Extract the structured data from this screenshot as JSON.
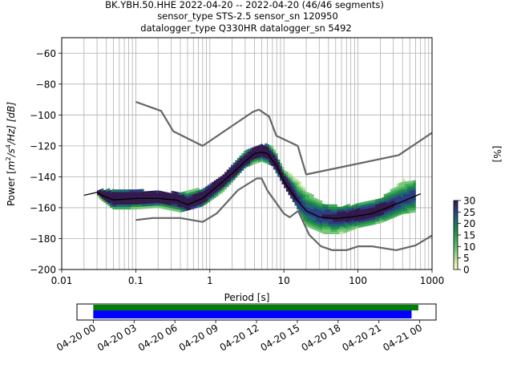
{
  "chart_data": {
    "type": "heatmap",
    "title_lines": [
      "BK.YBH.50.HHE   2022-04-20 -- 2022-04-20  (46/46 segments)",
      "sensor_type STS-2.5 sensor_sn 120950",
      "datalogger_type Q330HR datalogger_sn 5492"
    ],
    "xlabel": "Period [s]",
    "ylabel": "Power [m²/s⁴/Hz] [dB]",
    "ylabel_parts": {
      "lead": "Power [",
      "m": "m",
      "m_exp": "2",
      "mid": "/s",
      "s_exp": "4",
      "tail": "/Hz] [dB]"
    },
    "x_scale": "log",
    "xlim": [
      0.01,
      1000
    ],
    "ylim": [
      -200,
      -50
    ],
    "x_tick_labels": [
      "0.01",
      "0.1",
      "1",
      "10",
      "100",
      "1000"
    ],
    "y_tick_labels": [
      "−200",
      "−180",
      "−160",
      "−140",
      "−120",
      "−100",
      "−80",
      "−60"
    ],
    "y_ticks": [
      -200,
      -180,
      -160,
      -140,
      -120,
      -100,
      -80,
      -60
    ],
    "grid": true,
    "colorbar": {
      "label": "[%]",
      "range": [
        0,
        30
      ],
      "tick_labels": [
        "0",
        "5",
        "10",
        "15",
        "20",
        "25",
        "30"
      ],
      "colormap": [
        "#ffffcc",
        "#c2e699",
        "#78c679",
        "#41ab5d",
        "#238b45",
        "#1d6a70",
        "#2c3e80",
        "#331a4d"
      ]
    },
    "noise_models": [
      {
        "name": "high",
        "x": [
          0.1,
          0.22,
          0.32,
          0.8,
          3.8,
          4.6,
          6.3,
          7.9,
          15.4,
          20,
          354.8,
          1000
        ],
        "y": [
          -91.5,
          -97.4,
          -110.5,
          -120,
          -98,
          -96.5,
          -101,
          -113.5,
          -120,
          -138.5,
          -126,
          -111.5
        ]
      },
      {
        "name": "low",
        "x": [
          0.1,
          0.17,
          0.4,
          0.8,
          1.24,
          2.4,
          4.3,
          5,
          6,
          10,
          12,
          15.6,
          21.9,
          31.6,
          45,
          70,
          101,
          154,
          328,
          600,
          1000
        ],
        "y": [
          -168,
          -166.7,
          -166.7,
          -169.2,
          -163.7,
          -148.6,
          -141.1,
          -141.1,
          -149,
          -163.8,
          -166.2,
          -162.1,
          -177.5,
          -185,
          -187.5,
          -187.5,
          -185,
          -185,
          -187.5,
          -184.4,
          -178
        ]
      }
    ],
    "median": {
      "x": [
        0.02,
        0.03,
        0.035,
        0.05,
        0.1,
        0.2,
        0.35,
        0.5,
        0.8,
        1.2,
        2,
        3,
        4,
        5,
        6,
        8,
        10,
        15,
        20,
        30,
        50,
        80,
        150,
        250,
        400,
        700
      ],
      "y": [
        -152,
        -150,
        -152,
        -155,
        -154,
        -154,
        -155,
        -158,
        -154,
        -147,
        -138,
        -130,
        -125,
        -124,
        -125,
        -133,
        -143,
        -155,
        -162,
        -166,
        -167,
        -166,
        -164,
        -160,
        -156,
        -151
      ]
    },
    "pdf_band": {
      "x": [
        0.03,
        0.05,
        0.1,
        0.2,
        0.4,
        0.8,
        1.5,
        3,
        5,
        7,
        10,
        15,
        20,
        35,
        60,
        100,
        200,
        400,
        600
      ],
      "lo": [
        -153,
        -161,
        -161,
        -160,
        -163,
        -159,
        -150,
        -134,
        -130,
        -133,
        -146,
        -160,
        -172,
        -177,
        -177,
        -173,
        -170,
        -164,
        -163
      ],
      "hi": [
        -149,
        -149,
        -149,
        -150,
        -151,
        -148,
        -139,
        -124,
        -119,
        -121,
        -136,
        -142,
        -150,
        -158,
        -160,
        -158,
        -155,
        -143,
        -143
      ]
    }
  },
  "timeline": {
    "tick_labels": [
      "04-20 00",
      "04-20 03",
      "04-20 06",
      "04-20 09",
      "04-20 12",
      "04-20 15",
      "04-20 18",
      "04-20 21",
      "04-21 00"
    ],
    "tick_hours": [
      0,
      3,
      6,
      9,
      12,
      15,
      18,
      21,
      24
    ],
    "xlim_hours": [
      -1.2,
      25.2
    ],
    "bars": [
      {
        "name": "data-available",
        "start_h": 0,
        "end_h": 23.9,
        "color": "#008000"
      },
      {
        "name": "data-used",
        "start_h": 0,
        "end_h": 23.4,
        "color": "#0000ff"
      }
    ]
  }
}
